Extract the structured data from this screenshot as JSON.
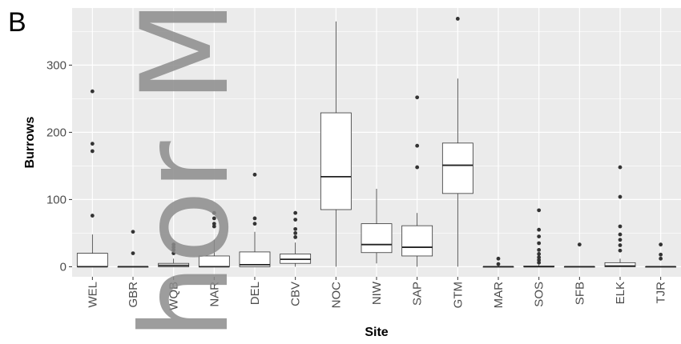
{
  "panel_label": "B",
  "watermark_text": "hor Manu",
  "chart_data": {
    "type": "box",
    "xlabel": "Site",
    "ylabel": "Burrows",
    "ylim": [
      -15,
      385
    ],
    "yticks": [
      0,
      100,
      200,
      300
    ],
    "grid": true,
    "categories": [
      "WEL",
      "GBR",
      "WQB",
      "NAR",
      "DEL",
      "CBV",
      "NOC",
      "NIW",
      "SAP",
      "GTM",
      "MAR",
      "SOS",
      "SFB",
      "ELK",
      "TJR"
    ],
    "boxes": [
      {
        "q1": 0,
        "median": 0,
        "q3": 20,
        "whisker_low": 0,
        "whisker_high": 48,
        "outliers": [
          76,
          172,
          183,
          261
        ]
      },
      {
        "q1": 0,
        "median": 0,
        "q3": 0,
        "whisker_low": 0,
        "whisker_high": 0,
        "outliers": [
          20,
          52
        ]
      },
      {
        "q1": 0,
        "median": 2,
        "q3": 5,
        "whisker_low": 0,
        "whisker_high": 12,
        "outliers": [
          20,
          25,
          29,
          33
        ]
      },
      {
        "q1": 0,
        "median": 0,
        "q3": 16,
        "whisker_low": 0,
        "whisker_high": 40,
        "outliers": [
          60,
          64,
          72,
          80
        ]
      },
      {
        "q1": 0,
        "median": 3,
        "q3": 22,
        "whisker_low": 0,
        "whisker_high": 52,
        "outliers": [
          64,
          72,
          137
        ]
      },
      {
        "q1": 5,
        "median": 11,
        "q3": 19,
        "whisker_low": 0,
        "whisker_high": 36,
        "outliers": [
          44,
          50,
          56,
          70,
          80
        ]
      },
      {
        "q1": 85,
        "median": 134,
        "q3": 229,
        "whisker_low": 0,
        "whisker_high": 365,
        "outliers": []
      },
      {
        "q1": 21,
        "median": 33,
        "q3": 64,
        "whisker_low": 5,
        "whisker_high": 116,
        "outliers": []
      },
      {
        "q1": 16,
        "median": 29,
        "q3": 61,
        "whisker_low": 0,
        "whisker_high": 80,
        "outliers": [
          148,
          180,
          252
        ]
      },
      {
        "q1": 109,
        "median": 151,
        "q3": 184,
        "whisker_low": 0,
        "whisker_high": 280,
        "outliers": [
          369
        ]
      },
      {
        "q1": 0,
        "median": 0,
        "q3": 0,
        "whisker_low": 0,
        "whisker_high": 0,
        "outliers": [
          4,
          12
        ]
      },
      {
        "q1": 0,
        "median": 0,
        "q3": 1,
        "whisker_low": 0,
        "whisker_high": 3,
        "outliers": [
          6,
          10,
          14,
          19,
          25,
          35,
          45,
          55,
          84
        ]
      },
      {
        "q1": 0,
        "median": 0,
        "q3": 0,
        "whisker_low": 0,
        "whisker_high": 0,
        "outliers": [
          33
        ]
      },
      {
        "q1": 0,
        "median": 1,
        "q3": 6,
        "whisker_low": 0,
        "whisker_high": 12,
        "outliers": [
          24,
          32,
          40,
          48,
          60,
          104,
          148
        ]
      },
      {
        "q1": 0,
        "median": 0,
        "q3": 0,
        "whisker_low": 0,
        "whisker_high": 0,
        "outliers": [
          12,
          18,
          33
        ]
      }
    ]
  }
}
